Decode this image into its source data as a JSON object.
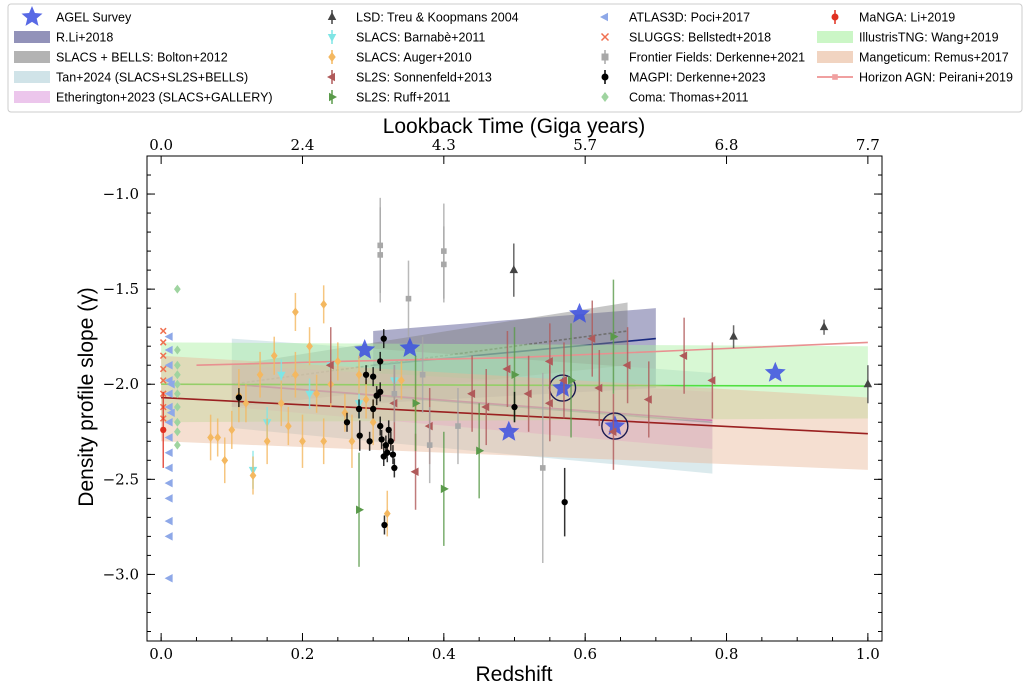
{
  "chart_data": {
    "type": "scatter",
    "xlabel": "Redshift",
    "ylabel": "Density profile slope (γ)",
    "top_label": "Lookback Time (Giga years)",
    "xlim": [
      -0.02,
      1.02
    ],
    "ylim": [
      -3.35,
      -0.8
    ],
    "x_ticks": [
      "0.0",
      "0.2",
      "0.4",
      "0.6",
      "0.8",
      "1.0"
    ],
    "x_tick_values": [
      0.0,
      0.2,
      0.4,
      0.6,
      0.8,
      1.0
    ],
    "y_ticks": [
      "−1.0",
      "−1.5",
      "−2.0",
      "−2.5",
      "−3.0"
    ],
    "y_tick_values": [
      -1.0,
      -1.5,
      -2.0,
      -2.5,
      -3.0
    ],
    "top_ticks": [
      "0.0",
      "2.4",
      "4.3",
      "5.7",
      "6.8",
      "7.7"
    ],
    "top_tick_redshifts": [
      0.0,
      0.2,
      0.4,
      0.6,
      0.8,
      1.0
    ],
    "grid": false,
    "legend_position": "top",
    "series": [
      {
        "name": "AGEL Survey",
        "marker": "star",
        "color": "#3b4fe0",
        "points": [
          [
            0.288,
            -1.82
          ],
          [
            0.352,
            -1.81
          ],
          [
            0.592,
            -1.63
          ],
          [
            0.492,
            -2.25
          ],
          [
            0.568,
            -2.02
          ],
          [
            0.642,
            -2.22
          ],
          [
            0.869,
            -1.94
          ]
        ],
        "circled": [
          [
            0.568,
            -2.02
          ],
          [
            0.642,
            -2.22
          ]
        ]
      },
      {
        "name": "LSD: Treu & Koopmans 2004",
        "marker": "tri_up",
        "color": "#444444",
        "points": [
          [
            0.499,
            -1.4,
            0.14
          ],
          [
            0.81,
            -1.75,
            0.06
          ],
          [
            0.938,
            -1.7,
            0.04
          ],
          [
            1.0,
            -2.0,
            0.1
          ]
        ]
      },
      {
        "name": "SLACS: Barnabè+2011",
        "marker": "tri_down",
        "color": "#7fe5e5",
        "points": [
          [
            0.13,
            -2.45,
            0.1
          ],
          [
            0.17,
            -1.95,
            0.08
          ],
          [
            0.21,
            -2.05,
            0.08
          ],
          [
            0.24,
            -1.9,
            0.06
          ],
          [
            0.28,
            -2.1,
            0.08
          ],
          [
            0.33,
            -1.98,
            0.08
          ],
          [
            0.15,
            -2.2,
            0.08
          ]
        ]
      },
      {
        "name": "SLACS: Auger+2010",
        "marker": "diamond",
        "color": "#f4b860",
        "points": [
          [
            0.07,
            -2.28,
            0.12
          ],
          [
            0.09,
            -2.4,
            0.12
          ],
          [
            0.11,
            -2.06,
            0.14
          ],
          [
            0.12,
            -2.1,
            0.1
          ],
          [
            0.13,
            -2.48,
            0.1
          ],
          [
            0.14,
            -1.95,
            0.12
          ],
          [
            0.15,
            -2.3,
            0.12
          ],
          [
            0.16,
            -1.85,
            0.1
          ],
          [
            0.17,
            -2.1,
            0.12
          ],
          [
            0.18,
            -2.22,
            0.1
          ],
          [
            0.19,
            -1.95,
            0.12
          ],
          [
            0.2,
            -2.3,
            0.14
          ],
          [
            0.21,
            -1.8,
            0.1
          ],
          [
            0.22,
            -2.05,
            0.1
          ],
          [
            0.23,
            -2.3,
            0.12
          ],
          [
            0.24,
            -2.0,
            0.12
          ],
          [
            0.25,
            -1.88,
            0.1
          ],
          [
            0.26,
            -2.15,
            0.1
          ],
          [
            0.27,
            -2.3,
            0.14
          ],
          [
            0.28,
            -1.95,
            0.1
          ],
          [
            0.29,
            -2.08,
            0.1
          ],
          [
            0.3,
            -2.2,
            0.12
          ],
          [
            0.32,
            -2.68,
            0.12
          ],
          [
            0.34,
            -1.98,
            0.1
          ],
          [
            0.36,
            -2.1,
            0.1
          ],
          [
            0.19,
            -1.62,
            0.1
          ],
          [
            0.23,
            -1.58,
            0.1
          ],
          [
            0.1,
            -2.24,
            0.1
          ],
          [
            0.08,
            -2.28,
            0.1
          ]
        ]
      },
      {
        "name": "SL2S: Sonnenfeld+2013",
        "marker": "tri_left",
        "color": "#b05a5a",
        "points": [
          [
            0.24,
            -1.9,
            0.2
          ],
          [
            0.33,
            -2.1,
            0.2
          ],
          [
            0.36,
            -2.46,
            0.2
          ],
          [
            0.44,
            -2.05,
            0.2
          ],
          [
            0.46,
            -2.12,
            0.2
          ],
          [
            0.49,
            -1.92,
            0.2
          ],
          [
            0.52,
            -2.05,
            0.2
          ],
          [
            0.55,
            -2.1,
            0.2
          ],
          [
            0.57,
            -1.98,
            0.2
          ],
          [
            0.61,
            -1.76,
            0.2
          ],
          [
            0.62,
            -2.02,
            0.2
          ],
          [
            0.64,
            -2.25,
            0.2
          ],
          [
            0.66,
            -1.9,
            0.2
          ],
          [
            0.69,
            -2.08,
            0.2
          ],
          [
            0.74,
            -1.85,
            0.2
          ],
          [
            0.78,
            -1.98,
            0.2
          ],
          [
            0.55,
            -1.88,
            0.2
          ],
          [
            0.38,
            -2.22,
            0.2
          ]
        ]
      },
      {
        "name": "SL2S: Ruff+2011",
        "marker": "tri_right",
        "color": "#5a9a4a",
        "points": [
          [
            0.28,
            -2.66,
            0.3
          ],
          [
            0.36,
            -2.1,
            0.25
          ],
          [
            0.4,
            -2.55,
            0.3
          ],
          [
            0.45,
            -2.35,
            0.25
          ],
          [
            0.5,
            -1.95,
            0.25
          ],
          [
            0.58,
            -1.98,
            0.3
          ],
          [
            0.64,
            -1.75,
            0.3
          ]
        ]
      },
      {
        "name": "ATLAS3D: Poci+2017",
        "marker": "tri_left",
        "color": "#8ea8e8",
        "points": [
          [
            0.012,
            -1.75
          ],
          [
            0.012,
            -1.82
          ],
          [
            0.012,
            -1.9
          ],
          [
            0.012,
            -1.98
          ],
          [
            0.012,
            -2.05
          ],
          [
            0.012,
            -2.12
          ],
          [
            0.012,
            -2.2
          ],
          [
            0.012,
            -2.28
          ],
          [
            0.012,
            -2.36
          ],
          [
            0.012,
            -2.44
          ],
          [
            0.012,
            -2.52
          ],
          [
            0.012,
            -2.6
          ],
          [
            0.012,
            -2.72
          ],
          [
            0.012,
            -2.8
          ],
          [
            0.012,
            -3.02
          ],
          [
            0.015,
            -2.0
          ],
          [
            0.015,
            -2.15
          ]
        ]
      },
      {
        "name": "SLUGGS: Bellstedt+2018",
        "marker": "x",
        "color": "#f07050",
        "points": [
          [
            0.003,
            -1.72
          ],
          [
            0.003,
            -1.78
          ],
          [
            0.003,
            -1.85
          ],
          [
            0.003,
            -1.92
          ],
          [
            0.003,
            -1.98
          ],
          [
            0.003,
            -2.05
          ],
          [
            0.003,
            -2.12
          ],
          [
            0.003,
            -2.18
          ]
        ]
      },
      {
        "name": "Frontier Fields: Derkenne+2021",
        "marker": "square",
        "color": "#a8a8a8",
        "points": [
          [
            0.31,
            -1.27,
            0.25
          ],
          [
            0.31,
            -1.32,
            0.25
          ],
          [
            0.35,
            -1.55,
            0.2
          ],
          [
            0.4,
            -1.3,
            0.25
          ],
          [
            0.4,
            -1.37,
            0.2
          ],
          [
            0.38,
            -2.32,
            0.2
          ],
          [
            0.54,
            -2.44,
            0.5
          ],
          [
            0.42,
            -2.22,
            0.2
          ],
          [
            0.33,
            -2.05,
            0.15
          ],
          [
            0.37,
            -1.95,
            0.2
          ]
        ]
      },
      {
        "name": "MAGPI: Derkenne+2023",
        "marker": "circle",
        "color": "#000000",
        "points": [
          [
            0.263,
            -2.2,
            0.05
          ],
          [
            0.28,
            -2.13,
            0.05
          ],
          [
            0.281,
            -2.27,
            0.08
          ],
          [
            0.29,
            -1.95,
            0.05
          ],
          [
            0.295,
            -2.3,
            0.05
          ],
          [
            0.3,
            -2.13,
            0.05
          ],
          [
            0.305,
            -2.06,
            0.05
          ],
          [
            0.31,
            -2.22,
            0.05
          ],
          [
            0.312,
            -2.29,
            0.05
          ],
          [
            0.315,
            -2.38,
            0.05
          ],
          [
            0.316,
            -2.74,
            0.05
          ],
          [
            0.318,
            -2.32,
            0.05
          ],
          [
            0.32,
            -2.36,
            0.05
          ],
          [
            0.322,
            -2.24,
            0.05
          ],
          [
            0.325,
            -2.3,
            0.05
          ],
          [
            0.328,
            -2.37,
            0.05
          ],
          [
            0.33,
            -2.44,
            0.05
          ],
          [
            0.315,
            -1.76,
            0.05
          ],
          [
            0.3,
            -1.96,
            0.05
          ],
          [
            0.31,
            -1.88,
            0.05
          ],
          [
            0.5,
            -2.12,
            0.08
          ],
          [
            0.571,
            -2.62,
            0.18
          ],
          [
            0.11,
            -2.07,
            0.05
          ],
          [
            0.31,
            -2.04,
            0.05
          ]
        ]
      },
      {
        "name": "Coma: Thomas+2011",
        "marker": "diamond",
        "color": "#9fd4a0",
        "points": [
          [
            0.023,
            -1.5
          ],
          [
            0.023,
            -1.82
          ],
          [
            0.023,
            -1.9
          ],
          [
            0.023,
            -2.0
          ],
          [
            0.023,
            -2.05
          ],
          [
            0.023,
            -2.12
          ],
          [
            0.023,
            -2.2
          ],
          [
            0.023,
            -2.25
          ],
          [
            0.023,
            -2.32
          ],
          [
            0.023,
            -1.95
          ]
        ]
      },
      {
        "name": "MaNGA: Li+2019",
        "marker": "circle",
        "color": "#e03020",
        "points": [
          [
            0.003,
            -2.24,
            0.2
          ]
        ]
      }
    ],
    "trends": [
      {
        "name": "R.Li+2018",
        "type": "band",
        "color": "#4a4a8a",
        "x": [
          0.3,
          0.7
        ],
        "lower": [
          -2.1,
          -2.02
        ],
        "upper": [
          -1.72,
          -1.6
        ],
        "mid": [
          -1.9,
          -1.76
        ]
      },
      {
        "name": "SLACS + BELLS: Bolton+2012",
        "type": "band",
        "color": "#808080",
        "x": [
          0.1,
          0.66
        ],
        "lower": [
          -2.12,
          -1.9
        ],
        "upper": [
          -1.9,
          -1.57
        ],
        "mid": [
          -2.0,
          -1.72
        ]
      },
      {
        "name": "Tan+2024 (SLACS+SL2S+BELLS)",
        "type": "band",
        "color": "#b0d0d8",
        "x": [
          0.1,
          0.78
        ],
        "lower": [
          -2.23,
          -2.47
        ],
        "upper": [
          -1.76,
          -1.94
        ],
        "mid": [
          -2.0,
          -2.2
        ]
      },
      {
        "name": "Etherington+2023 (SLACS+GALLERY)",
        "type": "band",
        "color": "#e0a0e0",
        "x": [
          0.1,
          0.78
        ],
        "lower": [
          -2.12,
          -2.34
        ],
        "upper": [
          -1.9,
          -2.04
        ],
        "mid": [
          -2.0,
          -2.19
        ]
      },
      {
        "name": "IllustrisTNG: Wang+2019",
        "type": "band",
        "color": "#a8f0a0",
        "x": [
          0.0,
          1.0
        ],
        "lower": [
          -2.2,
          -2.18
        ],
        "upper": [
          -1.78,
          -1.8
        ],
        "mid": [
          -2.0,
          -2.01
        ]
      },
      {
        "name": "Mangeticum: Remus+2017",
        "type": "band",
        "color": "#e8b898",
        "x": [
          0.0,
          1.0
        ],
        "lower": [
          -2.3,
          -2.45
        ],
        "upper": [
          -1.85,
          -2.07
        ],
        "mid": [
          -2.07,
          -2.26
        ]
      },
      {
        "name": "Horizon AGN: Peirani+2019",
        "type": "line",
        "color": "#f0a0a0",
        "x": [
          0.05,
          0.25,
          0.5,
          0.75,
          1.0
        ],
        "mid": [
          -1.9,
          -1.88,
          -1.86,
          -1.82,
          -1.78
        ]
      }
    ]
  }
}
